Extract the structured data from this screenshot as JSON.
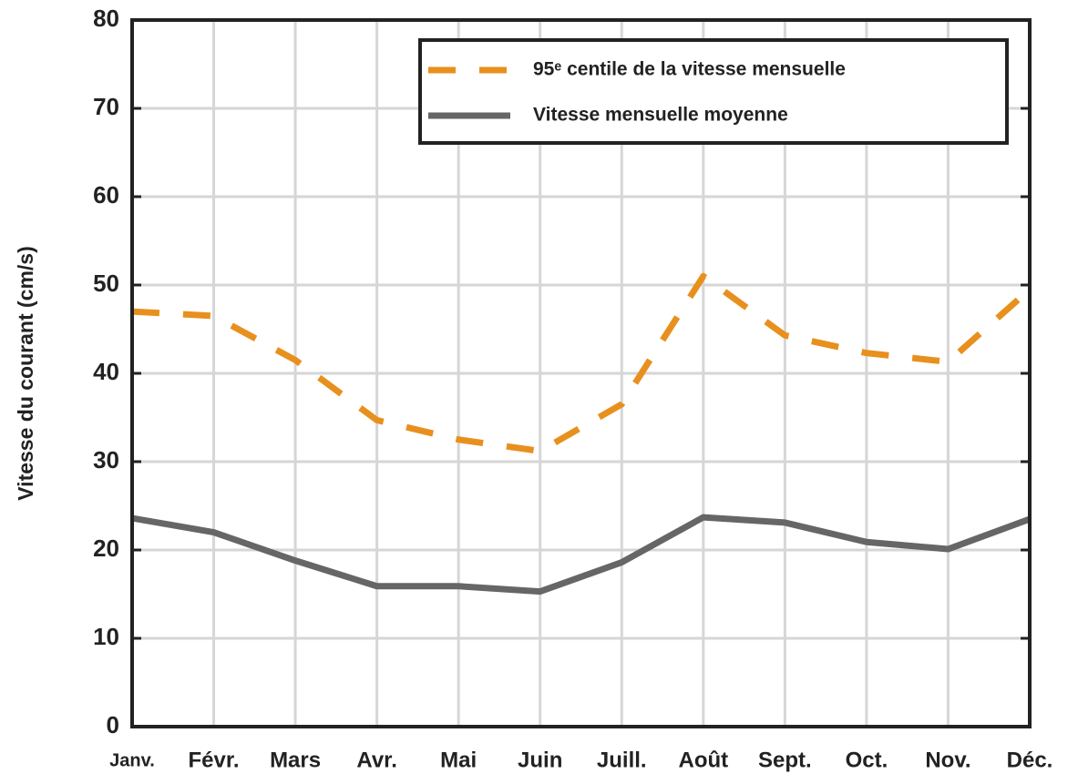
{
  "chart_data": {
    "type": "line",
    "y_label": "Vitesse du courant (cm/s)",
    "categories": [
      "Janv.",
      "Févr.",
      "Mars",
      "Avr.",
      "Mai",
      "Juin",
      "Juill.",
      "Août",
      "Sept.",
      "Oct.",
      "Nov.",
      "Déc."
    ],
    "series": [
      {
        "name": "95ᵉ centile de la vitesse mensuelle",
        "color": "#e8901e",
        "dash": true,
        "values": [
          47,
          46.5,
          41.5,
          34.7,
          32.5,
          31.2,
          36.5,
          51,
          44.3,
          42.3,
          41.3,
          49.5
        ]
      },
      {
        "name": "Vitesse mensuelle moyenne",
        "color": "#666666",
        "dash": false,
        "values": [
          23.6,
          22,
          18.8,
          15.9,
          15.9,
          15.3,
          18.6,
          23.7,
          23.1,
          20.9,
          20.1,
          23.5
        ]
      }
    ],
    "ylim": [
      0,
      80
    ],
    "yticks": [
      0,
      10,
      20,
      30,
      40,
      50,
      60,
      70,
      80
    ],
    "grid": true,
    "legend": "upper right"
  }
}
